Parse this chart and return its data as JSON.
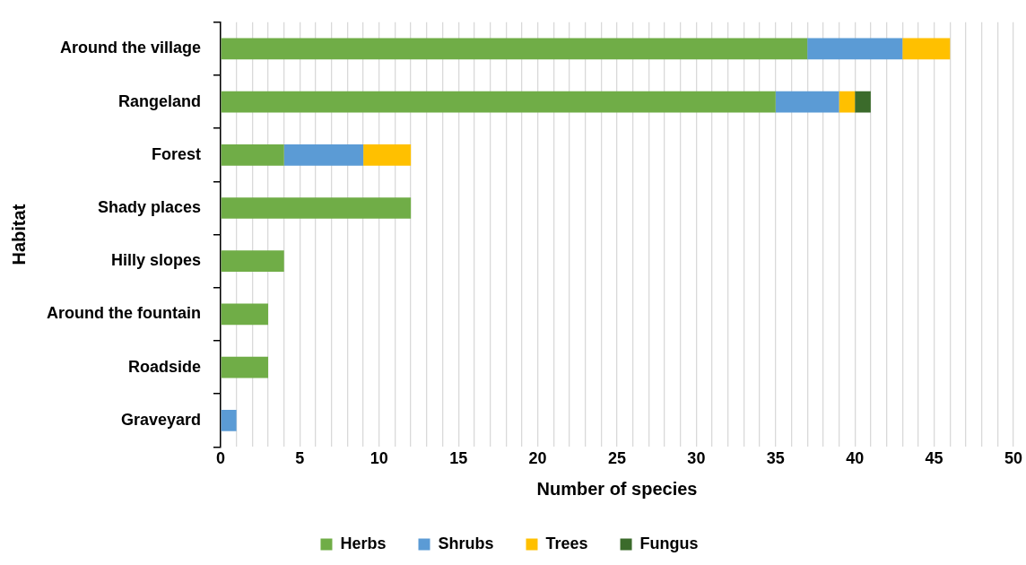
{
  "chart_data": {
    "type": "bar",
    "orientation": "horizontal",
    "stacked": true,
    "xlabel": "Number of species",
    "ylabel": "Habitat",
    "categories": [
      "Around the village",
      "Rangeland",
      "Forest",
      "Shady places",
      "Hilly slopes",
      "Around the fountain",
      "Roadside",
      "Graveyard"
    ],
    "series": [
      {
        "name": "Herbs",
        "color": "#70ad47",
        "values": [
          37,
          35,
          4,
          12,
          4,
          3,
          3,
          0
        ]
      },
      {
        "name": "Shrubs",
        "color": "#5b9bd5",
        "values": [
          6,
          4,
          5,
          0,
          0,
          0,
          0,
          1
        ]
      },
      {
        "name": "Trees",
        "color": "#ffc000",
        "values": [
          3,
          1,
          3,
          0,
          0,
          0,
          0,
          0
        ]
      },
      {
        "name": "Fungus",
        "color": "#3b6b2b",
        "values": [
          0,
          1,
          0,
          0,
          0,
          0,
          0,
          0
        ]
      }
    ],
    "xlim": [
      0,
      50
    ],
    "xticks": [
      0,
      {
        "value": 1,
        "label": null
      },
      {
        "value": 2,
        "label": null
      },
      {
        "value": 3,
        "label": null
      },
      {
        "value": 4,
        "label": null
      },
      5,
      {
        "value": 6,
        "label": null
      },
      {
        "value": 7,
        "label": null
      },
      {
        "value": 8,
        "label": null
      },
      {
        "value": 9,
        "label": null
      },
      10,
      {
        "value": 11,
        "label": null
      },
      {
        "value": 12,
        "label": null
      },
      {
        "value": 13,
        "label": null
      },
      {
        "value": 14,
        "label": null
      },
      15,
      {
        "value": 16,
        "label": null
      },
      {
        "value": 17,
        "label": null
      },
      {
        "value": 18,
        "label": null
      },
      {
        "value": 19,
        "label": null
      },
      20,
      {
        "value": 21,
        "label": null
      },
      {
        "value": 22,
        "label": null
      },
      {
        "value": 23,
        "label": null
      },
      {
        "value": 24,
        "label": null
      },
      25,
      {
        "value": 26,
        "label": null
      },
      {
        "value": 27,
        "label": null
      },
      {
        "value": 28,
        "label": null
      },
      {
        "value": 29,
        "label": null
      },
      30,
      {
        "value": 31,
        "label": null
      },
      {
        "value": 32,
        "label": null
      },
      {
        "value": 33,
        "label": null
      },
      {
        "value": 34,
        "label": null
      },
      35,
      {
        "value": 36,
        "label": null
      },
      {
        "value": 37,
        "label": null
      },
      {
        "value": 38,
        "label": null
      },
      {
        "value": 39,
        "label": null
      },
      40,
      {
        "value": 41,
        "label": null
      },
      {
        "value": 42,
        "label": null
      },
      {
        "value": 43,
        "label": null
      },
      {
        "value": 44,
        "label": null
      },
      45,
      {
        "value": 46,
        "label": null
      },
      {
        "value": 47,
        "label": null
      },
      {
        "value": 48,
        "label": null
      },
      {
        "value": 49,
        "label": null
      },
      50
    ],
    "grid": "x",
    "legend": "bottom"
  }
}
